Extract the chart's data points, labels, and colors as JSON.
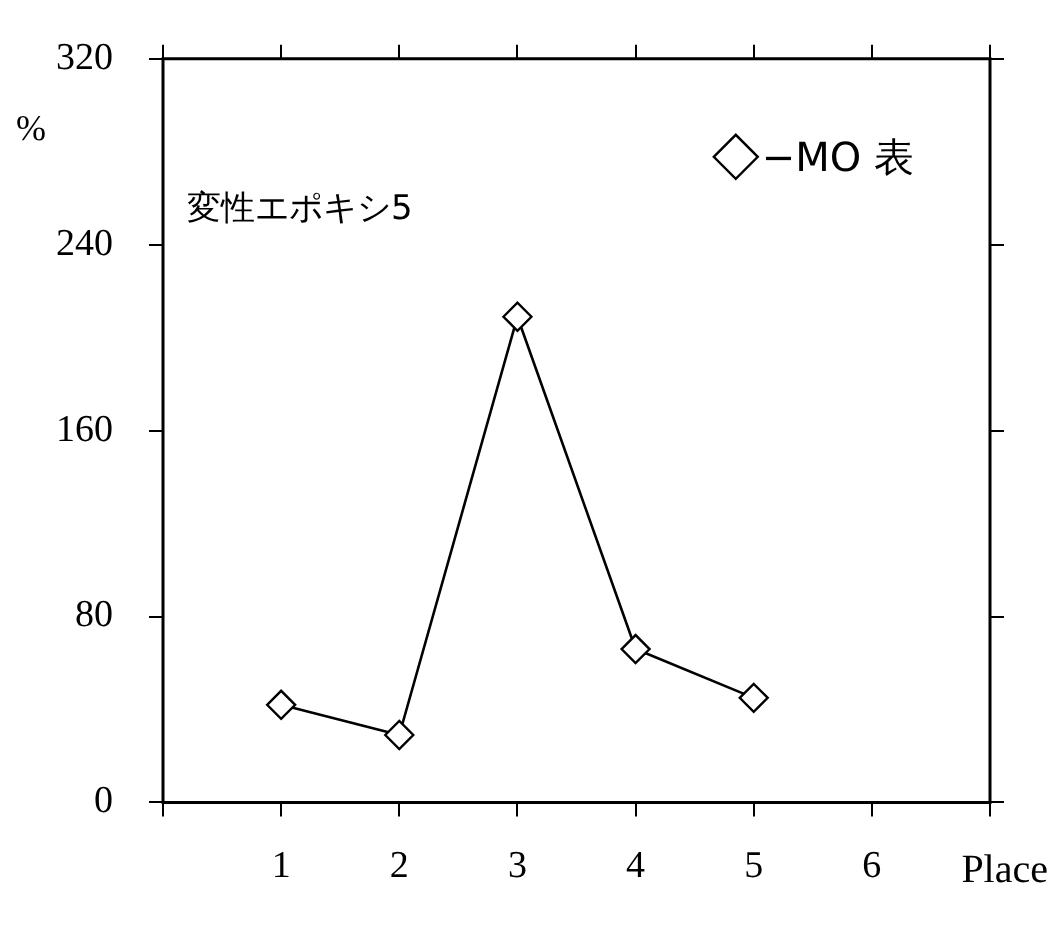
{
  "chart_data": {
    "type": "line",
    "title": "変性エポキシ5",
    "xlabel": "Place",
    "ylabel": "%",
    "x": [
      1,
      2,
      3,
      4,
      5
    ],
    "series": [
      {
        "name": "−MO 表",
        "color": "#000000",
        "values": [
          42,
          29,
          209,
          66,
          45
        ]
      }
    ],
    "xlim": [
      0,
      7
    ],
    "xticks": [
      {
        "value": 0,
        "label": null
      },
      1,
      2,
      3,
      4,
      5,
      6,
      {
        "value": 7,
        "label": null
      }
    ],
    "ylim": [
      0,
      320
    ],
    "yticks": [
      0,
      80,
      160,
      240,
      320
    ],
    "grid": false,
    "legend": "top right",
    "marker": "diamond",
    "line_style": "solid"
  }
}
